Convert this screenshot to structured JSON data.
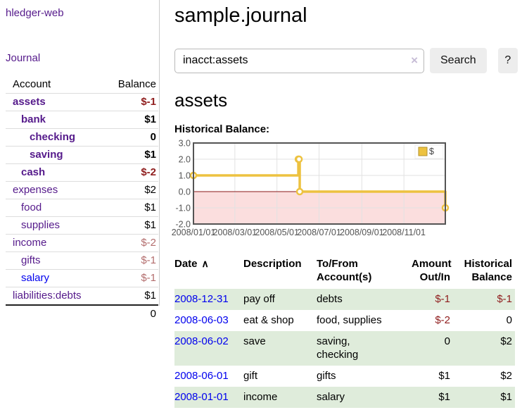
{
  "colors": {
    "link_purple": "#551a8b",
    "link_blue": "#0000ee",
    "negative_strong": "#8f1d1d",
    "negative_muted": "#b36d6d",
    "row_green": "#dfecdb",
    "chart_line": "#edc240",
    "chart_negative_fill": "#fbdede",
    "chart_zero_line": "#8b1a1a",
    "chart_border": "#545454",
    "chart_grid": "#e2e2e2"
  },
  "sidebar": {
    "app_title": "hledger-web",
    "journal_link": "Journal",
    "account_header": "Account",
    "balance_header": "Balance",
    "rows": [
      {
        "account": "assets",
        "balance": "$-1"
      },
      {
        "account": "bank",
        "balance": "$1"
      },
      {
        "account": "checking",
        "balance": "0"
      },
      {
        "account": "saving",
        "balance": "$1"
      },
      {
        "account": "cash",
        "balance": "$-2"
      },
      {
        "account": "expenses",
        "balance": "$2"
      },
      {
        "account": "food",
        "balance": "$1"
      },
      {
        "account": "supplies",
        "balance": "$1"
      },
      {
        "account": "income",
        "balance": "$-2"
      },
      {
        "account": "gifts",
        "balance": "$-1"
      },
      {
        "account": "salary",
        "balance": "$-1"
      },
      {
        "account": "liabilities:debts",
        "balance": "$1"
      }
    ],
    "total": "0"
  },
  "main": {
    "title": "sample.journal",
    "search": {
      "value": "inacct:assets",
      "clear": "×",
      "button": "Search",
      "help": "?"
    },
    "heading": "assets",
    "chart_title": "Historical Balance:"
  },
  "chart_data": {
    "type": "line",
    "step": true,
    "title": "Historical Balance",
    "legend": "$",
    "series": [
      {
        "name": "$",
        "points": [
          [
            "2008-01-01",
            1.0
          ],
          [
            "2008-06-01",
            2.0
          ],
          [
            "2008-06-02",
            2.0
          ],
          [
            "2008-06-03",
            0.0
          ],
          [
            "2008-12-31",
            -1.0
          ]
        ]
      }
    ],
    "x_range": [
      "2008-01-01",
      "2008-12-31"
    ],
    "x_ticks": [
      "2008/01/01",
      "2008/03/01",
      "2008/05/01",
      "2008/07/01",
      "2008/09/01",
      "2008/11/01"
    ],
    "ylim": [
      -2.0,
      3.0
    ],
    "y_ticks": [
      3.0,
      2.0,
      1.0,
      0.0,
      -1.0,
      -2.0
    ],
    "grid": true,
    "legend_position": "top-right",
    "negative_region_shaded": true
  },
  "register": {
    "headers": {
      "date": "Date",
      "description": "Description",
      "account": "To/From\nAccount(s)",
      "amount": "Amount\nOut/In",
      "balance": "Historical\nBalance"
    },
    "sort_icon": "∧",
    "rows": [
      {
        "date": "2008-12-31",
        "description": "pay off",
        "account": "debts",
        "amount": "$-1",
        "balance": "$-1"
      },
      {
        "date": "2008-06-03",
        "description": "eat & shop",
        "account": "food, supplies",
        "amount": "$-2",
        "balance": "0"
      },
      {
        "date": "2008-06-02",
        "description": "save",
        "account": "saving,\nchecking",
        "amount": "0",
        "balance": "$2"
      },
      {
        "date": "2008-06-01",
        "description": "gift",
        "account": "gifts",
        "amount": "$1",
        "balance": "$2"
      },
      {
        "date": "2008-01-01",
        "description": "income",
        "account": "salary",
        "amount": "$1",
        "balance": "$1"
      }
    ]
  }
}
